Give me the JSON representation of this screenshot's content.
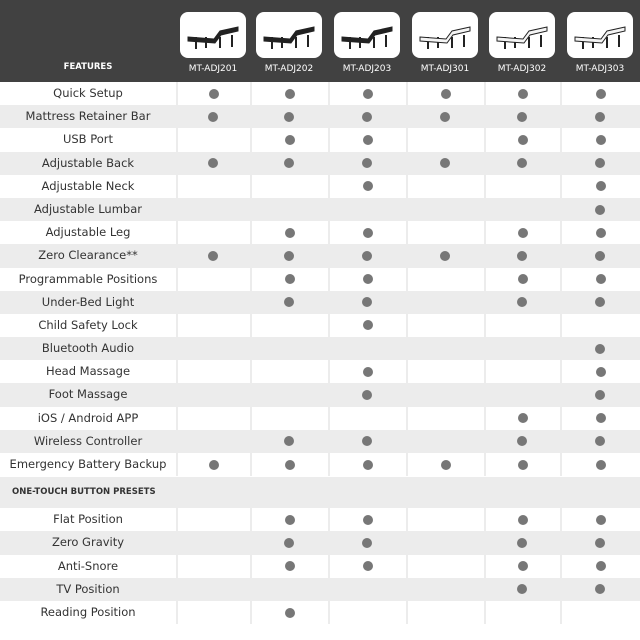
{
  "header": {
    "features_label": "FEATURES",
    "models": [
      {
        "name": "MT-ADJ201",
        "style": "dark"
      },
      {
        "name": "MT-ADJ202",
        "style": "dark"
      },
      {
        "name": "MT-ADJ203",
        "style": "dark"
      },
      {
        "name": "MT-ADJ301",
        "style": "light"
      },
      {
        "name": "MT-ADJ302",
        "style": "light"
      },
      {
        "name": "MT-ADJ303",
        "style": "light"
      }
    ]
  },
  "colors": {
    "header_bg": "#414141",
    "stripe": "#ececec",
    "dot": "#777777"
  },
  "features": [
    {
      "label": "Quick Setup",
      "has": [
        1,
        1,
        1,
        1,
        1,
        1
      ]
    },
    {
      "label": "Mattress Retainer Bar",
      "has": [
        1,
        1,
        1,
        1,
        1,
        1
      ]
    },
    {
      "label": "USB Port",
      "has": [
        0,
        1,
        1,
        0,
        1,
        1
      ]
    },
    {
      "label": "Adjustable Back",
      "has": [
        1,
        1,
        1,
        1,
        1,
        1
      ]
    },
    {
      "label": "Adjustable Neck",
      "has": [
        0,
        0,
        1,
        0,
        0,
        1
      ]
    },
    {
      "label": "Adjustable Lumbar",
      "has": [
        0,
        0,
        0,
        0,
        0,
        1
      ]
    },
    {
      "label": "Adjustable Leg",
      "has": [
        0,
        1,
        1,
        0,
        1,
        1
      ]
    },
    {
      "label": "Zero Clearance**",
      "has": [
        1,
        1,
        1,
        1,
        1,
        1
      ]
    },
    {
      "label": "Programmable Positions",
      "has": [
        0,
        1,
        1,
        0,
        1,
        1
      ]
    },
    {
      "label": "Under-Bed Light",
      "has": [
        0,
        1,
        1,
        0,
        1,
        1
      ]
    },
    {
      "label": "Child Safety Lock",
      "has": [
        0,
        0,
        1,
        0,
        0,
        0
      ]
    },
    {
      "label": "Bluetooth Audio",
      "has": [
        0,
        0,
        0,
        0,
        0,
        1
      ]
    },
    {
      "label": "Head Massage",
      "has": [
        0,
        0,
        1,
        0,
        0,
        1
      ]
    },
    {
      "label": "Foot Massage",
      "has": [
        0,
        0,
        1,
        0,
        0,
        1
      ]
    },
    {
      "label": "iOS / Android APP",
      "has": [
        0,
        0,
        0,
        0,
        1,
        1
      ]
    },
    {
      "label": "Wireless Controller",
      "has": [
        0,
        1,
        1,
        0,
        1,
        1
      ]
    },
    {
      "label": "Emergency Battery Backup",
      "has": [
        1,
        1,
        1,
        1,
        1,
        1
      ]
    }
  ],
  "presets_section": {
    "title": "ONE-TOUCH BUTTON PRESETS",
    "items": [
      {
        "label": "Flat Position",
        "has": [
          0,
          1,
          1,
          0,
          1,
          1
        ]
      },
      {
        "label": "Zero Gravity",
        "has": [
          0,
          1,
          1,
          0,
          1,
          1
        ]
      },
      {
        "label": "Anti-Snore",
        "has": [
          0,
          1,
          1,
          0,
          1,
          1
        ]
      },
      {
        "label": "TV Position",
        "has": [
          0,
          0,
          0,
          0,
          1,
          1
        ]
      },
      {
        "label": "Reading Position",
        "has": [
          0,
          1,
          0,
          0,
          0,
          0
        ]
      }
    ]
  }
}
